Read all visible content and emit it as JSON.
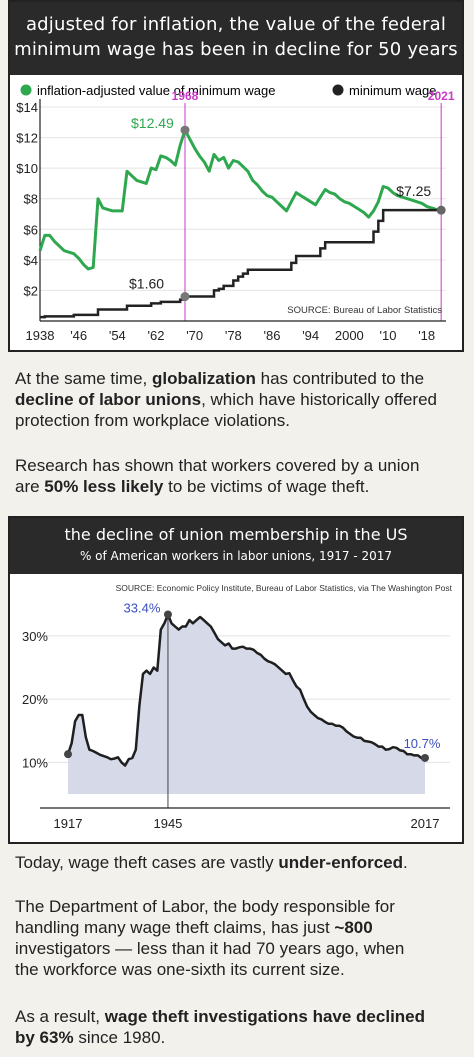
{
  "chart1": {
    "title_line1": "adjusted for inflation, the value of the federal",
    "title_line2": "minimum wage has been in decline for 50 years",
    "legend": [
      {
        "label": "inflation-adjusted value of minimum wage",
        "color": "#2ea84e"
      },
      {
        "label": "minimum wage",
        "color": "#222222"
      }
    ],
    "source": "SOURCE: Bureau of Labor Statistics",
    "marker_1968": "1968",
    "marker_2021": "2021",
    "label_1249": "$12.49",
    "label_160": "$1.60",
    "label_725": "$7.25",
    "chart_data": {
      "type": "line",
      "x_ticks": [
        "1938",
        "'46",
        "'54",
        "'62",
        "'70",
        "'78",
        "'86",
        "'94",
        "2000",
        "'10",
        "'18"
      ],
      "y_ticks": [
        "$2",
        "$4",
        "$6",
        "$8",
        "$10",
        "$12",
        "$14"
      ],
      "ylim": [
        0,
        14
      ],
      "xlim": [
        1938,
        2022
      ],
      "series": [
        {
          "name": "inflation-adjusted value of minimum wage",
          "color": "#2ea84e",
          "points": [
            [
              1938,
              4.6
            ],
            [
              1939,
              5.6
            ],
            [
              1940,
              5.6
            ],
            [
              1941,
              5.2
            ],
            [
              1942,
              4.9
            ],
            [
              1943,
              4.6
            ],
            [
              1944,
              4.5
            ],
            [
              1945,
              4.4
            ],
            [
              1946,
              4.1
            ],
            [
              1947,
              3.7
            ],
            [
              1948,
              3.4
            ],
            [
              1949,
              3.5
            ],
            [
              1950,
              8.0
            ],
            [
              1951,
              7.4
            ],
            [
              1952,
              7.3
            ],
            [
              1953,
              7.2
            ],
            [
              1954,
              7.2
            ],
            [
              1955,
              7.2
            ],
            [
              1956,
              9.8
            ],
            [
              1957,
              9.5
            ],
            [
              1958,
              9.2
            ],
            [
              1959,
              9.1
            ],
            [
              1960,
              9.0
            ],
            [
              1961,
              10.0
            ],
            [
              1962,
              9.9
            ],
            [
              1963,
              10.8
            ],
            [
              1964,
              10.7
            ],
            [
              1965,
              10.5
            ],
            [
              1966,
              10.2
            ],
            [
              1967,
              11.5
            ],
            [
              1968,
              12.49
            ],
            [
              1969,
              11.9
            ],
            [
              1970,
              11.3
            ],
            [
              1971,
              10.8
            ],
            [
              1972,
              10.4
            ],
            [
              1973,
              9.8
            ],
            [
              1974,
              10.9
            ],
            [
              1975,
              10.5
            ],
            [
              1976,
              10.7
            ],
            [
              1977,
              10.0
            ],
            [
              1978,
              10.5
            ],
            [
              1979,
              10.4
            ],
            [
              1980,
              10.1
            ],
            [
              1981,
              9.8
            ],
            [
              1982,
              9.2
            ],
            [
              1983,
              8.9
            ],
            [
              1984,
              8.5
            ],
            [
              1985,
              8.2
            ],
            [
              1986,
              8.1
            ],
            [
              1987,
              7.8
            ],
            [
              1988,
              7.5
            ],
            [
              1989,
              7.2
            ],
            [
              1990,
              7.8
            ],
            [
              1991,
              8.4
            ],
            [
              1992,
              8.2
            ],
            [
              1993,
              8.0
            ],
            [
              1994,
              7.8
            ],
            [
              1995,
              7.6
            ],
            [
              1996,
              8.1
            ],
            [
              1997,
              8.6
            ],
            [
              1998,
              8.4
            ],
            [
              1999,
              8.3
            ],
            [
              2000,
              8.0
            ],
            [
              2001,
              7.8
            ],
            [
              2002,
              7.7
            ],
            [
              2003,
              7.5
            ],
            [
              2004,
              7.3
            ],
            [
              2005,
              7.1
            ],
            [
              2006,
              6.8
            ],
            [
              2007,
              7.2
            ],
            [
              2008,
              7.8
            ],
            [
              2009,
              8.8
            ],
            [
              2010,
              8.7
            ],
            [
              2011,
              8.4
            ],
            [
              2012,
              8.2
            ],
            [
              2013,
              8.1
            ],
            [
              2014,
              8.0
            ],
            [
              2015,
              7.9
            ],
            [
              2016,
              7.8
            ],
            [
              2017,
              7.7
            ],
            [
              2018,
              7.5
            ],
            [
              2019,
              7.4
            ],
            [
              2020,
              7.3
            ],
            [
              2021,
              7.25
            ]
          ]
        },
        {
          "name": "minimum wage",
          "color": "#222222",
          "points": [
            [
              1938,
              0.25
            ],
            [
              1939,
              0.3
            ],
            [
              1945,
              0.4
            ],
            [
              1950,
              0.75
            ],
            [
              1956,
              1.0
            ],
            [
              1961,
              1.15
            ],
            [
              1963,
              1.25
            ],
            [
              1967,
              1.4
            ],
            [
              1968,
              1.6
            ],
            [
              1974,
              2.0
            ],
            [
              1975,
              2.1
            ],
            [
              1976,
              2.3
            ],
            [
              1978,
              2.65
            ],
            [
              1979,
              2.9
            ],
            [
              1980,
              3.1
            ],
            [
              1981,
              3.35
            ],
            [
              1990,
              3.8
            ],
            [
              1991,
              4.25
            ],
            [
              1996,
              4.75
            ],
            [
              1997,
              5.15
            ],
            [
              2007,
              5.85
            ],
            [
              2008,
              6.55
            ],
            [
              2009,
              7.25
            ],
            [
              2021,
              7.25
            ]
          ]
        }
      ]
    }
  },
  "para1": {
    "p1": "At the same time, ",
    "b1": "globalization",
    "p2": " has contributed to the",
    "b2": "decline of labor unions",
    "p3": ", which have historically offered",
    "p4": "protection from workplace violations."
  },
  "para2": {
    "p1": "Research has shown that workers covered by a union",
    "p2": "are ",
    "b1": "50% less likely",
    "p3": " to be victims of wage theft."
  },
  "chart2": {
    "title": "the decline of union membership in the US",
    "subtitle": "% of American workers in labor unions, 1917 - 2017",
    "source": "SOURCE: Economic Policy Institute, Bureau of Labor Statistics, via The Washington Post",
    "label_334": "33.4%",
    "label_107": "10.7%",
    "chart_data": {
      "type": "area",
      "x_ticks": [
        "1917",
        "1945",
        "2017"
      ],
      "y_ticks": [
        "10%",
        "20%",
        "30%"
      ],
      "xlim": [
        1917,
        2017
      ],
      "ylim": [
        5,
        36
      ],
      "color": "#1f1f1f",
      "fill": "#d5d9e8",
      "points": [
        [
          1917,
          11.3
        ],
        [
          1918,
          13.0
        ],
        [
          1919,
          16.5
        ],
        [
          1920,
          17.5
        ],
        [
          1921,
          17.5
        ],
        [
          1922,
          14.0
        ],
        [
          1923,
          12.0
        ],
        [
          1924,
          11.8
        ],
        [
          1925,
          11.5
        ],
        [
          1926,
          11.2
        ],
        [
          1927,
          11.0
        ],
        [
          1928,
          10.8
        ],
        [
          1929,
          10.5
        ],
        [
          1930,
          10.6
        ],
        [
          1931,
          10.8
        ],
        [
          1932,
          10.0
        ],
        [
          1933,
          9.5
        ],
        [
          1934,
          10.5
        ],
        [
          1935,
          10.7
        ],
        [
          1936,
          12.0
        ],
        [
          1937,
          19.0
        ],
        [
          1938,
          24.0
        ],
        [
          1939,
          24.5
        ],
        [
          1940,
          24.0
        ],
        [
          1941,
          25.0
        ],
        [
          1942,
          24.5
        ],
        [
          1943,
          31.0
        ],
        [
          1944,
          32.0
        ],
        [
          1945,
          33.4
        ],
        [
          1946,
          32.0
        ],
        [
          1947,
          31.5
        ],
        [
          1948,
          31.0
        ],
        [
          1949,
          31.5
        ],
        [
          1950,
          31.5
        ],
        [
          1951,
          32.5
        ],
        [
          1952,
          32.0
        ],
        [
          1953,
          32.5
        ],
        [
          1954,
          33.0
        ],
        [
          1955,
          32.5
        ],
        [
          1956,
          32.0
        ],
        [
          1957,
          31.5
        ],
        [
          1958,
          30.5
        ],
        [
          1959,
          29.5
        ],
        [
          1960,
          29.0
        ],
        [
          1961,
          28.5
        ],
        [
          1962,
          28.8
        ],
        [
          1963,
          28.0
        ],
        [
          1964,
          28.0
        ],
        [
          1965,
          28.2
        ],
        [
          1966,
          28.3
        ],
        [
          1967,
          28.0
        ],
        [
          1968,
          28.0
        ],
        [
          1969,
          27.8
        ],
        [
          1970,
          27.3
        ],
        [
          1971,
          27.0
        ],
        [
          1972,
          26.4
        ],
        [
          1973,
          26.0
        ],
        [
          1974,
          25.8
        ],
        [
          1975,
          25.5
        ],
        [
          1976,
          25.0
        ],
        [
          1977,
          24.5
        ],
        [
          1978,
          24.0
        ],
        [
          1979,
          24.1
        ],
        [
          1980,
          23.0
        ],
        [
          1981,
          22.0
        ],
        [
          1982,
          21.5
        ],
        [
          1983,
          20.1
        ],
        [
          1984,
          18.8
        ],
        [
          1985,
          18.0
        ],
        [
          1986,
          17.5
        ],
        [
          1987,
          17.0
        ],
        [
          1988,
          16.8
        ],
        [
          1989,
          16.4
        ],
        [
          1990,
          16.1
        ],
        [
          1991,
          16.1
        ],
        [
          1992,
          15.8
        ],
        [
          1993,
          15.8
        ],
        [
          1994,
          15.5
        ],
        [
          1995,
          14.9
        ],
        [
          1996,
          14.5
        ],
        [
          1997,
          14.1
        ],
        [
          1998,
          13.9
        ],
        [
          1999,
          13.9
        ],
        [
          2000,
          13.4
        ],
        [
          2001,
          13.3
        ],
        [
          2002,
          13.2
        ],
        [
          2003,
          12.9
        ],
        [
          2004,
          12.5
        ],
        [
          2005,
          12.5
        ],
        [
          2006,
          12.0
        ],
        [
          2007,
          12.1
        ],
        [
          2008,
          12.4
        ],
        [
          2009,
          12.3
        ],
        [
          2010,
          11.9
        ],
        [
          2011,
          11.8
        ],
        [
          2012,
          11.3
        ],
        [
          2013,
          11.3
        ],
        [
          2014,
          11.1
        ],
        [
          2015,
          11.1
        ],
        [
          2016,
          10.7
        ],
        [
          2017,
          10.7
        ]
      ]
    }
  },
  "para3": {
    "p1": "Today, wage theft cases are vastly ",
    "b1": "under-enforced",
    "p2": "."
  },
  "para4": {
    "l1": "The Department of Labor, the body responsible for",
    "l2a": "handling many wage theft claims, has just ",
    "l2b": "~800",
    "l3": "investigators — less than it had 70 years ago, when",
    "l4": "the workforce was one-sixth its current size."
  },
  "para5": {
    "p1": "As a result, ",
    "b1": "wage theft investigations have declined",
    "b2": "by 63%",
    "p2": " since 1980."
  }
}
